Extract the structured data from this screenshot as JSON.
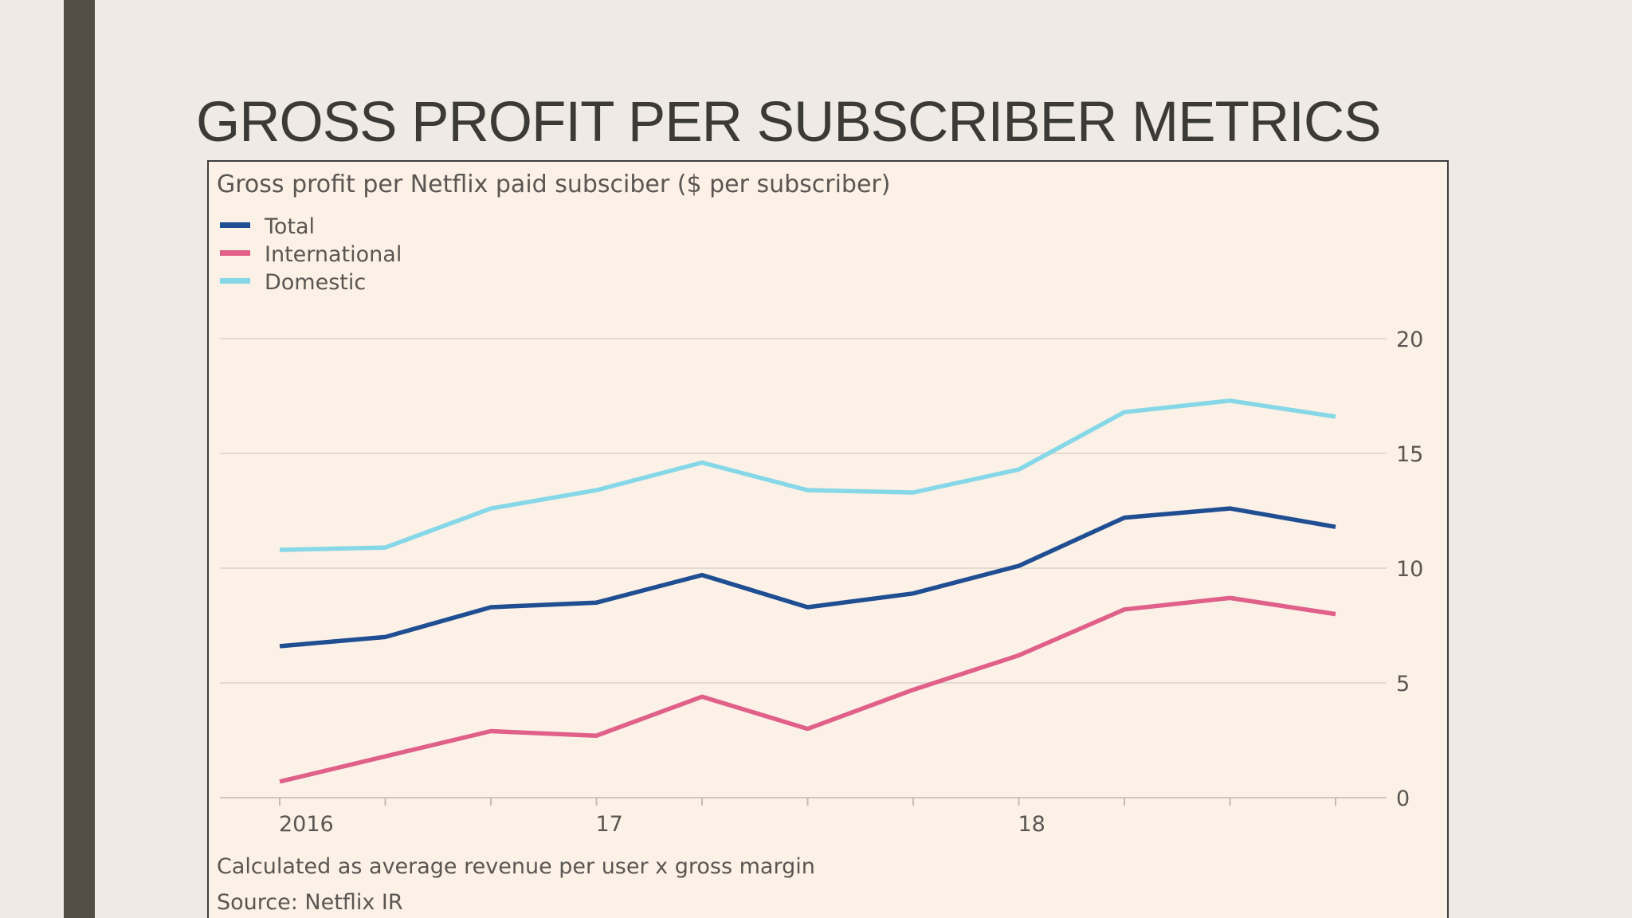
{
  "slide": {
    "title": "GROSS PROFIT PER SUBSCRIBER METRICS",
    "colors": {
      "background": "#efebe4",
      "left_bar": "#524e46",
      "panel": "#fcf1e6"
    }
  },
  "chart_data": {
    "type": "line",
    "title": "Gross profit per Netflix paid subsciber ($ per subscriber)",
    "xlabel": "",
    "ylabel": "",
    "x": [
      "2016 Q1",
      "2016 Q2",
      "2016 Q3",
      "2016 Q4",
      "2017 Q1",
      "2017 Q2",
      "2017 Q3",
      "2017 Q4",
      "2018 Q1",
      "2018 Q2",
      "2018 Q3"
    ],
    "x_tick_labels": [
      "2016",
      "17",
      "18"
    ],
    "x_tick_label_at": [
      0,
      3,
      7
    ],
    "ylim": [
      0,
      20
    ],
    "yticks": [
      0,
      5,
      10,
      15,
      20
    ],
    "y_axis_side": "right",
    "grid": true,
    "legend_position": "top-left",
    "series": [
      {
        "name": "Total",
        "color": "#1f4e93",
        "values": [
          6.6,
          7.0,
          8.3,
          8.5,
          9.7,
          8.3,
          8.9,
          10.1,
          12.2,
          12.6,
          11.8
        ]
      },
      {
        "name": "International",
        "color": "#e0608a",
        "values": [
          0.7,
          1.8,
          2.9,
          2.7,
          4.4,
          3.0,
          4.7,
          6.2,
          8.2,
          8.7,
          8.0
        ]
      },
      {
        "name": "Domestic",
        "color": "#86d8e8",
        "values": [
          10.8,
          10.9,
          12.6,
          13.4,
          14.6,
          13.4,
          13.3,
          14.3,
          16.8,
          17.3,
          16.6
        ]
      }
    ],
    "footnote": "Calculated as average revenue per user x gross margin",
    "source": "Source: Netflix IR",
    "colors": {
      "grid": "#dad2ca",
      "text": "#5a5652"
    }
  }
}
